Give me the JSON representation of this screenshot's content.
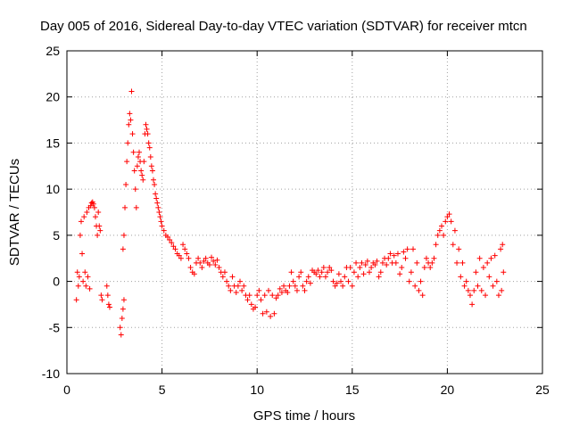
{
  "chart_data": {
    "type": "scatter",
    "title": "Day 005 of 2016, Sidereal Day-to-day VTEC variation (SDTVAR) for receiver mtcn",
    "xlabel": "GPS time / hours",
    "ylabel": "SDTVAR / TECUs",
    "xlim": [
      0,
      25
    ],
    "ylim": [
      -10,
      25
    ],
    "xticks": [
      "0",
      "5",
      "10",
      "15",
      "20",
      "25"
    ],
    "yticks": [
      "-10",
      "-5",
      "0",
      "5",
      "10",
      "15",
      "20",
      "25"
    ],
    "grid": true,
    "marker": "+",
    "color": "#ff0000",
    "series": [
      {
        "name": "SDTVAR",
        "points": [
          [
            0.5,
            -2.0
          ],
          [
            0.55,
            1.0
          ],
          [
            0.6,
            -0.5
          ],
          [
            0.65,
            0.5
          ],
          [
            0.7,
            5.0
          ],
          [
            0.75,
            6.5
          ],
          [
            0.8,
            3.0
          ],
          [
            0.85,
            0.0
          ],
          [
            0.9,
            7.0
          ],
          [
            0.95,
            1.0
          ],
          [
            1.0,
            -0.5
          ],
          [
            1.05,
            7.5
          ],
          [
            1.1,
            0.5
          ],
          [
            1.15,
            8.0
          ],
          [
            1.2,
            -0.8
          ],
          [
            1.25,
            8.2
          ],
          [
            1.3,
            8.5
          ],
          [
            1.35,
            8.6
          ],
          [
            1.4,
            8.4
          ],
          [
            1.45,
            8.0
          ],
          [
            1.5,
            7.0
          ],
          [
            1.55,
            6.0
          ],
          [
            1.6,
            5.0
          ],
          [
            1.65,
            7.5
          ],
          [
            1.7,
            6.0
          ],
          [
            1.75,
            5.5
          ],
          [
            1.8,
            -1.5
          ],
          [
            1.85,
            -2.0
          ],
          [
            2.1,
            -0.5
          ],
          [
            2.15,
            -1.5
          ],
          [
            2.2,
            -2.5
          ],
          [
            2.25,
            -2.8
          ],
          [
            2.8,
            -5.0
          ],
          [
            2.85,
            -5.8
          ],
          [
            2.9,
            -4.0
          ],
          [
            2.95,
            -3.0
          ],
          [
            3.0,
            -2.0
          ],
          [
            2.95,
            3.5
          ],
          [
            3.0,
            5.0
          ],
          [
            3.05,
            8.0
          ],
          [
            3.1,
            10.5
          ],
          [
            3.15,
            13.0
          ],
          [
            3.2,
            15.0
          ],
          [
            3.25,
            17.0
          ],
          [
            3.3,
            18.2
          ],
          [
            3.35,
            17.5
          ],
          [
            3.4,
            20.6
          ],
          [
            3.45,
            16.0
          ],
          [
            3.5,
            14.0
          ],
          [
            3.55,
            12.0
          ],
          [
            3.6,
            10.0
          ],
          [
            3.65,
            8.0
          ],
          [
            3.7,
            12.5
          ],
          [
            3.75,
            13.5
          ],
          [
            3.8,
            14.0
          ],
          [
            3.85,
            13.0
          ],
          [
            3.9,
            12.0
          ],
          [
            3.95,
            11.5
          ],
          [
            4.0,
            11.0
          ],
          [
            4.05,
            13.0
          ],
          [
            4.1,
            16.0
          ],
          [
            4.15,
            17.0
          ],
          [
            4.2,
            16.5
          ],
          [
            4.25,
            16.0
          ],
          [
            4.3,
            15.0
          ],
          [
            4.35,
            14.5
          ],
          [
            4.4,
            13.5
          ],
          [
            4.45,
            12.5
          ],
          [
            4.5,
            12.0
          ],
          [
            4.55,
            11.0
          ],
          [
            4.6,
            10.5
          ],
          [
            4.65,
            9.5
          ],
          [
            4.7,
            9.0
          ],
          [
            4.75,
            8.5
          ],
          [
            4.8,
            8.0
          ],
          [
            4.85,
            7.5
          ],
          [
            4.9,
            7.0
          ],
          [
            4.95,
            6.5
          ],
          [
            5.0,
            6.0
          ],
          [
            5.1,
            5.5
          ],
          [
            5.2,
            5.0
          ],
          [
            5.3,
            4.8
          ],
          [
            5.4,
            4.5
          ],
          [
            5.5,
            4.2
          ],
          [
            5.6,
            3.8
          ],
          [
            5.7,
            3.5
          ],
          [
            5.8,
            3.0
          ],
          [
            5.9,
            2.8
          ],
          [
            6.0,
            2.5
          ],
          [
            6.1,
            4.0
          ],
          [
            6.2,
            3.5
          ],
          [
            6.3,
            3.0
          ],
          [
            6.4,
            2.5
          ],
          [
            6.5,
            1.5
          ],
          [
            6.6,
            1.0
          ],
          [
            6.7,
            0.8
          ],
          [
            6.8,
            2.0
          ],
          [
            6.9,
            2.5
          ],
          [
            7.0,
            2.0
          ],
          [
            7.1,
            1.5
          ],
          [
            7.2,
            2.2
          ],
          [
            7.3,
            2.5
          ],
          [
            7.4,
            2.0
          ],
          [
            7.5,
            1.8
          ],
          [
            7.6,
            2.6
          ],
          [
            7.7,
            2.2
          ],
          [
            7.8,
            1.8
          ],
          [
            7.9,
            2.3
          ],
          [
            8.0,
            1.5
          ],
          [
            8.1,
            1.0
          ],
          [
            8.2,
            0.5
          ],
          [
            8.3,
            1.0
          ],
          [
            8.4,
            0.0
          ],
          [
            8.5,
            -0.5
          ],
          [
            8.6,
            -1.0
          ],
          [
            8.7,
            0.5
          ],
          [
            8.8,
            -0.5
          ],
          [
            8.9,
            -1.2
          ],
          [
            9.0,
            -0.5
          ],
          [
            9.1,
            0.0
          ],
          [
            9.2,
            -1.0
          ],
          [
            9.3,
            -0.5
          ],
          [
            9.4,
            -1.5
          ],
          [
            9.5,
            -2.0
          ],
          [
            9.6,
            -1.5
          ],
          [
            9.7,
            -2.5
          ],
          [
            9.8,
            -3.0
          ],
          [
            9.9,
            -2.8
          ],
          [
            10.0,
            -1.5
          ],
          [
            10.1,
            -1.0
          ],
          [
            10.2,
            -2.0
          ],
          [
            10.3,
            -3.5
          ],
          [
            10.4,
            -1.5
          ],
          [
            10.5,
            -3.3
          ],
          [
            10.6,
            -1.0
          ],
          [
            10.7,
            -3.8
          ],
          [
            10.8,
            -1.5
          ],
          [
            10.9,
            -3.5
          ],
          [
            11.0,
            -1.8
          ],
          [
            11.1,
            -1.5
          ],
          [
            11.2,
            -0.8
          ],
          [
            11.3,
            -1.2
          ],
          [
            11.4,
            -0.5
          ],
          [
            11.5,
            -1.0
          ],
          [
            11.6,
            -1.2
          ],
          [
            11.7,
            -0.5
          ],
          [
            11.8,
            1.0
          ],
          [
            11.9,
            0.0
          ],
          [
            12.0,
            -0.5
          ],
          [
            12.1,
            -1.0
          ],
          [
            12.2,
            0.5
          ],
          [
            12.3,
            1.0
          ],
          [
            12.4,
            -0.5
          ],
          [
            12.5,
            -1.0
          ],
          [
            12.6,
            0.0
          ],
          [
            12.7,
            0.5
          ],
          [
            12.8,
            -0.2
          ],
          [
            12.9,
            1.2
          ],
          [
            13.0,
            1.0
          ],
          [
            13.1,
            0.8
          ],
          [
            13.2,
            1.2
          ],
          [
            13.3,
            0.5
          ],
          [
            13.4,
            1.0
          ],
          [
            13.5,
            1.5
          ],
          [
            13.6,
            0.5
          ],
          [
            13.7,
            1.0
          ],
          [
            13.8,
            1.5
          ],
          [
            13.9,
            1.2
          ],
          [
            14.0,
            0.0
          ],
          [
            14.1,
            -0.5
          ],
          [
            14.2,
            -0.2
          ],
          [
            14.3,
            0.8
          ],
          [
            14.4,
            0.0
          ],
          [
            14.5,
            -0.5
          ],
          [
            14.6,
            0.5
          ],
          [
            14.7,
            1.5
          ],
          [
            14.8,
            0.0
          ],
          [
            14.9,
            1.5
          ],
          [
            15.0,
            -0.5
          ],
          [
            15.1,
            1.0
          ],
          [
            15.2,
            2.0
          ],
          [
            15.3,
            0.5
          ],
          [
            15.4,
            1.5
          ],
          [
            15.5,
            2.0
          ],
          [
            15.6,
            0.8
          ],
          [
            15.7,
            1.8
          ],
          [
            15.8,
            2.2
          ],
          [
            15.9,
            1.0
          ],
          [
            16.0,
            1.5
          ],
          [
            16.1,
            2.0
          ],
          [
            16.2,
            1.8
          ],
          [
            16.3,
            2.2
          ],
          [
            16.4,
            0.5
          ],
          [
            16.5,
            1.0
          ],
          [
            16.6,
            2.0
          ],
          [
            16.7,
            2.5
          ],
          [
            16.8,
            1.8
          ],
          [
            16.9,
            2.5
          ],
          [
            17.0,
            3.0
          ],
          [
            17.1,
            2.0
          ],
          [
            17.2,
            2.8
          ],
          [
            17.3,
            2.0
          ],
          [
            17.4,
            3.0
          ],
          [
            17.5,
            0.8
          ],
          [
            17.6,
            1.5
          ],
          [
            17.7,
            3.2
          ],
          [
            17.8,
            2.5
          ],
          [
            17.9,
            3.5
          ],
          [
            18.0,
            0.0
          ],
          [
            18.1,
            1.0
          ],
          [
            18.2,
            3.5
          ],
          [
            18.3,
            -0.5
          ],
          [
            18.4,
            2.0
          ],
          [
            18.5,
            -1.0
          ],
          [
            18.6,
            0.0
          ],
          [
            18.7,
            -1.5
          ],
          [
            18.8,
            1.5
          ],
          [
            18.9,
            2.5
          ],
          [
            19.0,
            2.0
          ],
          [
            19.1,
            1.5
          ],
          [
            19.2,
            2.0
          ],
          [
            19.3,
            2.5
          ],
          [
            19.4,
            4.0
          ],
          [
            19.5,
            5.0
          ],
          [
            19.6,
            5.5
          ],
          [
            19.7,
            6.0
          ],
          [
            19.8,
            5.0
          ],
          [
            19.9,
            6.5
          ],
          [
            20.0,
            7.0
          ],
          [
            20.1,
            7.3
          ],
          [
            20.2,
            6.5
          ],
          [
            20.3,
            4.0
          ],
          [
            20.4,
            5.5
          ],
          [
            20.5,
            2.0
          ],
          [
            20.6,
            3.5
          ],
          [
            20.7,
            0.5
          ],
          [
            20.8,
            2.0
          ],
          [
            20.9,
            -0.5
          ],
          [
            21.0,
            0.0
          ],
          [
            21.1,
            -1.0
          ],
          [
            21.2,
            -1.5
          ],
          [
            21.3,
            -2.5
          ],
          [
            21.4,
            -1.0
          ],
          [
            21.5,
            1.0
          ],
          [
            21.6,
            -0.5
          ],
          [
            21.7,
            2.5
          ],
          [
            21.8,
            -1.0
          ],
          [
            21.9,
            1.5
          ],
          [
            22.0,
            -1.5
          ],
          [
            22.1,
            2.0
          ],
          [
            22.2,
            0.5
          ],
          [
            22.3,
            2.5
          ],
          [
            22.4,
            -0.5
          ],
          [
            22.5,
            2.8
          ],
          [
            22.6,
            0.0
          ],
          [
            22.7,
            -1.5
          ],
          [
            22.8,
            3.5
          ],
          [
            22.85,
            -1.0
          ],
          [
            22.9,
            4.0
          ],
          [
            22.95,
            1.0
          ]
        ]
      }
    ]
  }
}
